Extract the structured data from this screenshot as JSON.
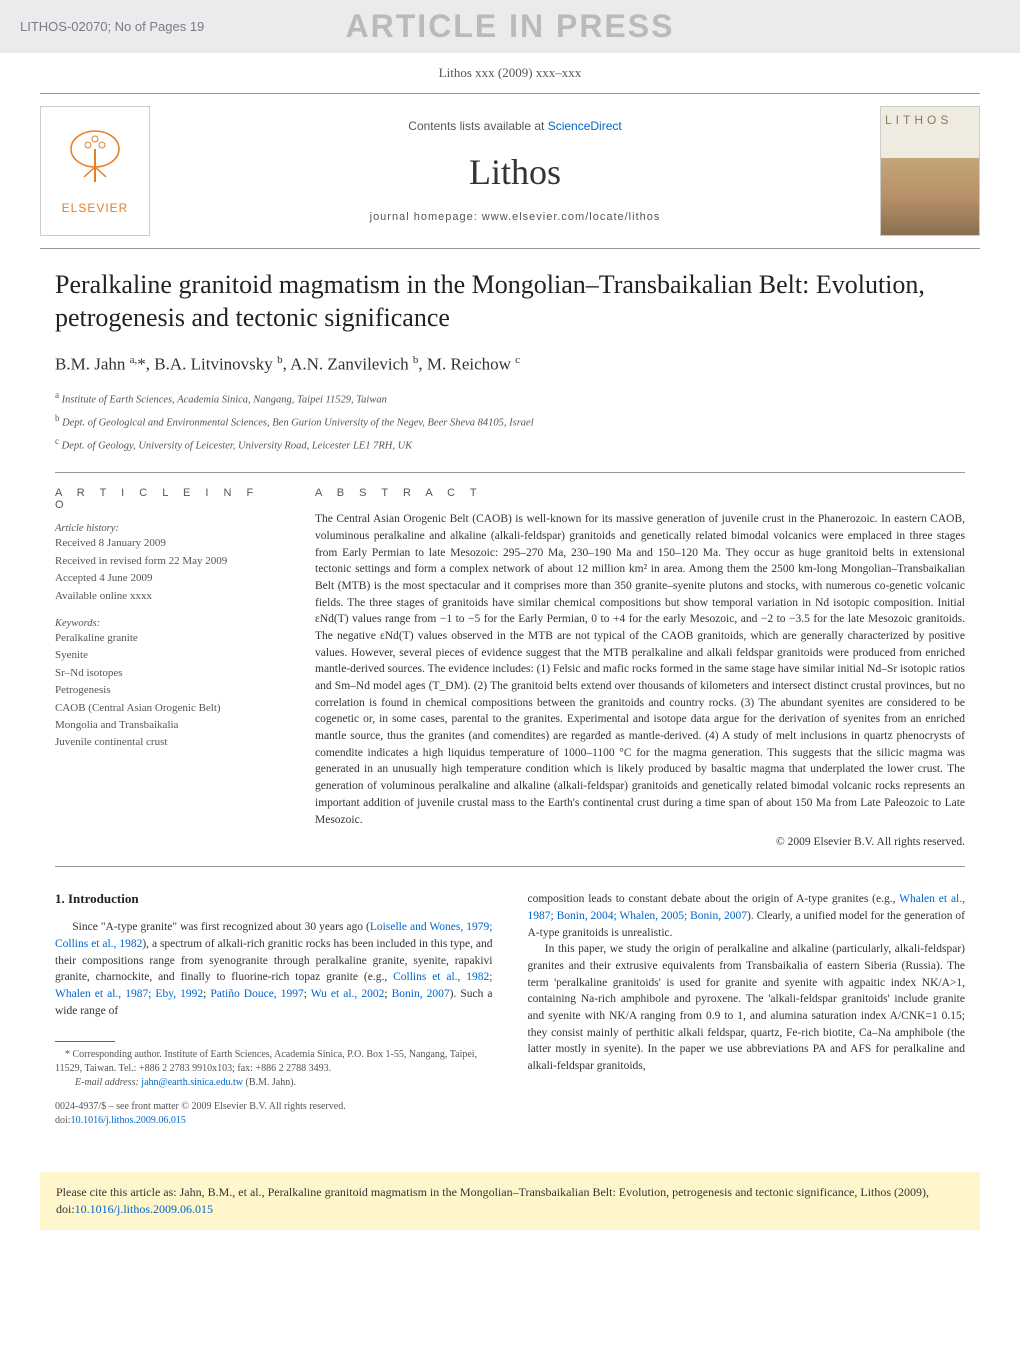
{
  "banner": {
    "article_id": "LITHOS-02070; No of Pages 19",
    "watermark": "ARTICLE IN PRESS"
  },
  "journal": {
    "reference_line": "Lithos xxx (2009) xxx–xxx",
    "contents_prefix": "Contents lists available at ",
    "contents_link": "ScienceDirect",
    "name": "Lithos",
    "homepage": "journal homepage: www.elsevier.com/locate/lithos",
    "elsevier": "ELSEVIER",
    "cover_label": "LITHOS"
  },
  "article": {
    "title": "Peralkaline granitoid magmatism in the Mongolian–Transbaikalian Belt: Evolution, petrogenesis and tectonic significance",
    "authors_html": "B.M. Jahn <sup>a,</sup><span class='corr-star'>*</span>, B.A. Litvinovsky <sup>b</sup>, A.N. Zanvilevich <sup>b</sup>, M. Reichow <sup>c</sup>",
    "affiliations": [
      "<sup>a</sup> Institute of Earth Sciences, Academia Sinica, Nangang, Taipei 11529, Taiwan",
      "<sup>b</sup> Dept. of Geological and Environmental Sciences, Ben Gurion University of the Negev, Beer Sheva 84105, Israel",
      "<sup>c</sup> Dept. of Geology, University of Leicester, University Road, Leicester LE1 7RH, UK"
    ]
  },
  "info": {
    "heading": "A R T I C L E   I N F O",
    "history_label": "Article history:",
    "history": [
      "Received 8 January 2009",
      "Received in revised form 22 May 2009",
      "Accepted 4 June 2009",
      "Available online xxxx"
    ],
    "keywords_label": "Keywords:",
    "keywords": [
      "Peralkaline granite",
      "Syenite",
      "Sr–Nd isotopes",
      "Petrogenesis",
      "CAOB (Central Asian Orogenic Belt)",
      "Mongolia and Transbaikalia",
      "Juvenile continental crust"
    ]
  },
  "abstract": {
    "heading": "A B S T R A C T",
    "text": "The Central Asian Orogenic Belt (CAOB) is well-known for its massive generation of juvenile crust in the Phanerozoic. In eastern CAOB, voluminous peralkaline and alkaline (alkali-feldspar) granitoids and genetically related bimodal volcanics were emplaced in three stages from Early Permian to late Mesozoic: 295–270 Ma, 230–190 Ma and 150–120 Ma. They occur as huge granitoid belts in extensional tectonic settings and form a complex network of about 12 million km² in area. Among them the 2500 km-long Mongolian–Transbaikalian Belt (MTB) is the most spectacular and it comprises more than 350 granite–syenite plutons and stocks, with numerous co-genetic volcanic fields. The three stages of granitoids have similar chemical compositions but show temporal variation in Nd isotopic composition. Initial εNd(T) values range from −1 to −5 for the Early Permian, 0 to +4 for the early Mesozoic, and −2 to −3.5 for the late Mesozoic granitoids. The negative εNd(T) values observed in the MTB are not typical of the CAOB granitoids, which are generally characterized by positive values. However, several pieces of evidence suggest that the MTB peralkaline and alkali feldspar granitoids were produced from enriched mantle-derived sources. The evidence includes: (1) Felsic and mafic rocks formed in the same stage have similar initial Nd–Sr isotopic ratios and Sm–Nd model ages (T_DM). (2) The granitoid belts extend over thousands of kilometers and intersect distinct crustal provinces, but no correlation is found in chemical compositions between the granitoids and country rocks. (3) The abundant syenites are considered to be cogenetic or, in some cases, parental to the granites. Experimental and isotope data argue for the derivation of syenites from an enriched mantle source, thus the granites (and comendites) are regarded as mantle-derived. (4) A study of melt inclusions in quartz phenocrysts of comendite indicates a high liquidus temperature of 1000–1100 °C for the magma generation. This suggests that the silicic magma was generated in an unusually high temperature condition which is likely produced by basaltic magma that underplated the lower crust. The generation of voluminous peralkaline and alkaline (alkali-feldspar) granitoids and genetically related bimodal volcanic rocks represents an important addition of juvenile crustal mass to the Earth's continental crust during a time span of about 150 Ma from Late Paleozoic to Late Mesozoic.",
    "copyright": "© 2009 Elsevier B.V. All rights reserved."
  },
  "body": {
    "section1_heading": "1. Introduction",
    "col1_p1": "Since \"A-type granite\" was first recognized about 30 years ago (<a class='ref-link'>Loiselle and Wones, 1979; Collins et al., 1982</a>), a spectrum of alkali-rich granitic rocks has been included in this type, and their compositions range from syenogranite through peralkaline granite, syenite, rapakivi granite, charnockite, and finally to fluorine-rich topaz granite (e.g., <a class='ref-link'>Collins et al., 1982; Whalen et al., 1987; Eby, 1992</a>; <a class='ref-link'>Patiño Douce, 1997</a>; <a class='ref-link'>Wu et al., 2002</a>; <a class='ref-link'>Bonin, 2007</a>). Such a wide range of",
    "col2_p1": "composition leads to constant debate about the origin of A-type granites (e.g., <a class='ref-link'>Whalen et al., 1987; Bonin, 2004; Whalen, 2005; Bonin, 2007</a>). Clearly, a unified model for the generation of A-type granitoids is unrealistic.",
    "col2_p2": "In this paper, we study the origin of peralkaline and alkaline (particularly, alkali-feldspar) granites and their extrusive equivalents from Transbaikalia of eastern Siberia (Russia). The term 'peralkaline granitoids' is used for granite and syenite with agpaitic index NK/A>1, containing Na-rich amphibole and pyroxene. The 'alkali-feldspar granitoids' include granite and syenite with NK/A ranging from 0.9 to 1, and alumina saturation index A/CNK=1 0.15; they consist mainly of perthitic alkali feldspar, quartz, Fe-rich biotite, Ca–Na amphibole (the latter mostly in syenite). In the paper we use abbreviations PA and AFS for peralkaline and alkali-feldspar granitoids,"
  },
  "footnote": {
    "corresponding": "* Corresponding author. Institute of Earth Sciences, Academia Sinica, P.O. Box 1-55, Nangang, Taipei, 11529, Taiwan. Tel.: +886 2 2783 9910x103; fax: +886 2 2788 3493.",
    "email_label": "E-mail address: ",
    "email": "jahn@earth.sinica.edu.tw",
    "email_suffix": " (B.M. Jahn).",
    "copyright": "0024-4937/$ – see front matter © 2009 Elsevier B.V. All rights reserved.",
    "doi_label": "doi:",
    "doi": "10.1016/j.lithos.2009.06.015"
  },
  "citation_box": {
    "text": "Please cite this article as: Jahn, B.M., et al., Peralkaline granitoid magmatism in the Mongolian–Transbaikalian Belt: Evolution, petrogenesis and tectonic significance, Lithos (2009), doi:",
    "doi": "10.1016/j.lithos.2009.06.015"
  },
  "colors": {
    "banner_bg": "#eaebed",
    "watermark_fg": "#b8babc",
    "link": "#0066cc",
    "elsevier_orange": "#e67e22",
    "citation_bg": "#fff6cc",
    "rule": "#999999",
    "body_text": "#333333"
  }
}
